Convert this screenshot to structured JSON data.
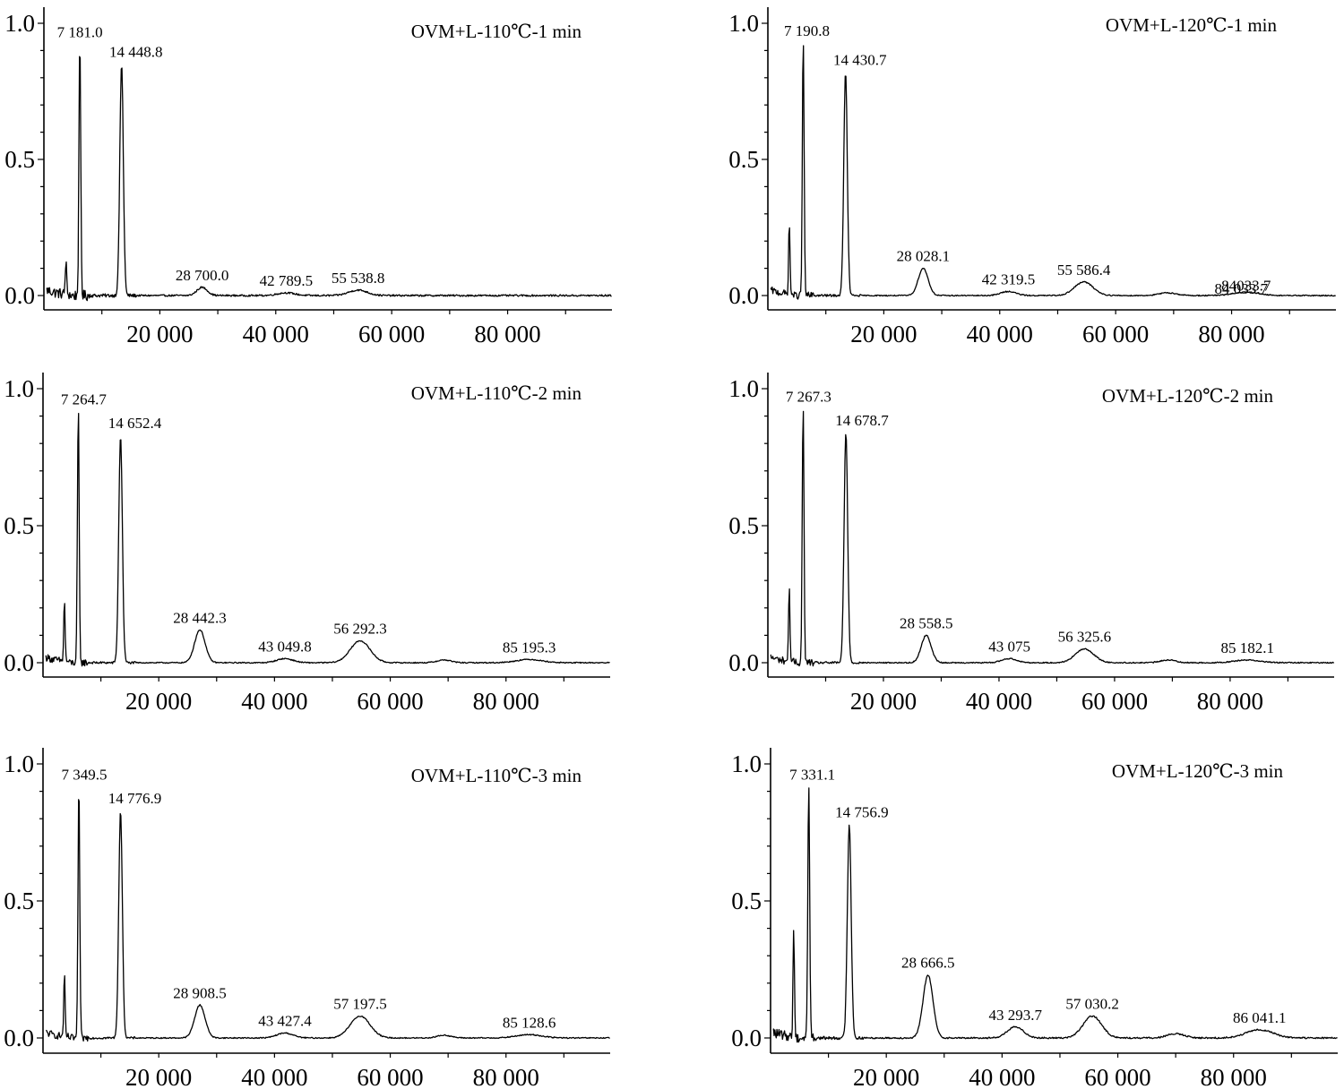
{
  "chart_data": [
    {
      "type": "line",
      "title": "OVM+L-110℃-1 min",
      "xlim": [
        0,
        98000
      ],
      "ylim": [
        0,
        1.05
      ],
      "xticks": [
        20000,
        40000,
        60000,
        80000
      ],
      "xtick_labels": [
        "20 000",
        "40 000",
        "60 000",
        "80 000"
      ],
      "yticks": [
        0.0,
        0.5,
        1.0
      ],
      "ytick_labels": [
        "0.0",
        "0.5",
        "1.0"
      ],
      "xlabel": "",
      "ylabel": "",
      "noise": 0.018,
      "peaks": [
        {
          "x": 3800,
          "height": 0.12,
          "sigma": 120,
          "label": ""
        },
        {
          "x": 6200,
          "height": 0.93,
          "sigma": 150,
          "label": "7 181.0"
        },
        {
          "x": 13400,
          "height": 0.85,
          "sigma": 300,
          "label": "14 448.8"
        },
        {
          "x": 27300,
          "height": 0.03,
          "sigma": 900,
          "label": "28 700.0"
        },
        {
          "x": 41800,
          "height": 0.01,
          "sigma": 1500,
          "label": "42 789.5"
        },
        {
          "x": 54200,
          "height": 0.02,
          "sigma": 1600,
          "label": "55 538.8"
        }
      ]
    },
    {
      "type": "line",
      "title": "OVM+L-110℃-2 min",
      "xlim": [
        0,
        98000
      ],
      "ylim": [
        0,
        1.05
      ],
      "xticks": [
        20000,
        40000,
        60000,
        80000
      ],
      "xtick_labels": [
        "20 000",
        "40 000",
        "60 000",
        "80 000"
      ],
      "yticks": [
        0.0,
        0.5,
        1.0
      ],
      "ytick_labels": [
        "0.0",
        "0.5",
        "1.0"
      ],
      "xlabel": "",
      "ylabel": "",
      "noise": 0.012,
      "peaks": [
        {
          "x": 3700,
          "height": 0.22,
          "sigma": 120,
          "label": ""
        },
        {
          "x": 6100,
          "height": 0.93,
          "sigma": 150,
          "label": "7 264.7"
        },
        {
          "x": 13400,
          "height": 0.83,
          "sigma": 310,
          "label": "14 652.4"
        },
        {
          "x": 27100,
          "height": 0.12,
          "sigma": 900,
          "label": "28 442.3"
        },
        {
          "x": 41800,
          "height": 0.015,
          "sigma": 1400,
          "label": "43 049.8"
        },
        {
          "x": 54800,
          "height": 0.08,
          "sigma": 1700,
          "label": "56 292.3"
        },
        {
          "x": 69300,
          "height": 0.01,
          "sigma": 1200,
          "label": ""
        },
        {
          "x": 84000,
          "height": 0.012,
          "sigma": 2200,
          "label": "85 195.3"
        }
      ]
    },
    {
      "type": "line",
      "title": "OVM+L-110℃-3 min",
      "xlim": [
        0,
        98000
      ],
      "ylim": [
        0,
        1.05
      ],
      "xticks": [
        20000,
        40000,
        60000,
        80000
      ],
      "xtick_labels": [
        "20 000",
        "40 000",
        "60 000",
        "80 000"
      ],
      "yticks": [
        0.0,
        0.5,
        1.0
      ],
      "ytick_labels": [
        "0.0",
        "0.5",
        "1.0"
      ],
      "xlabel": "",
      "ylabel": "",
      "noise": 0.012,
      "peaks": [
        {
          "x": 3700,
          "height": 0.22,
          "sigma": 120,
          "label": ""
        },
        {
          "x": 6200,
          "height": 0.93,
          "sigma": 150,
          "label": "7 349.5"
        },
        {
          "x": 13400,
          "height": 0.83,
          "sigma": 310,
          "label": "14 776.9"
        },
        {
          "x": 27100,
          "height": 0.12,
          "sigma": 900,
          "label": "28 908.5"
        },
        {
          "x": 41800,
          "height": 0.018,
          "sigma": 1400,
          "label": "43 427.4"
        },
        {
          "x": 54800,
          "height": 0.08,
          "sigma": 1700,
          "label": "57 197.5"
        },
        {
          "x": 69300,
          "height": 0.01,
          "sigma": 1200,
          "label": ""
        },
        {
          "x": 84000,
          "height": 0.012,
          "sigma": 2200,
          "label": "85 128.6"
        }
      ]
    },
    {
      "type": "line",
      "title": "OVM+L-120℃-1 min",
      "xlim": [
        0,
        98000
      ],
      "ylim": [
        0,
        1.05
      ],
      "xticks": [
        20000,
        40000,
        60000,
        80000
      ],
      "xtick_labels": [
        "20 000",
        "40 000",
        "60 000",
        "80 000"
      ],
      "yticks": [
        0.0,
        0.5,
        1.0
      ],
      "ytick_labels": [
        "0.0",
        "0.5",
        "1.0"
      ],
      "xlabel": "",
      "ylabel": "",
      "noise": 0.012,
      "peaks": [
        {
          "x": 3700,
          "height": 0.26,
          "sigma": 120,
          "label": ""
        },
        {
          "x": 6100,
          "height": 0.94,
          "sigma": 150,
          "label": "7 190.8"
        },
        {
          "x": 13400,
          "height": 0.82,
          "sigma": 300,
          "label": "14 430.7"
        },
        {
          "x": 26800,
          "height": 0.1,
          "sigma": 850,
          "label": "28 028.1"
        },
        {
          "x": 41500,
          "height": 0.015,
          "sigma": 1300,
          "label": "42 319.5"
        },
        {
          "x": 54500,
          "height": 0.05,
          "sigma": 1600,
          "label": "55 586.4"
        },
        {
          "x": 69000,
          "height": 0.01,
          "sigma": 1500,
          "label": ""
        },
        {
          "x": 82500,
          "height": 0.012,
          "sigma": 2200,
          "label": "84033.7"
        },
        {
          "x": 83500,
          "height": 0.0,
          "sigma": 2200,
          "label": "84 033.7"
        }
      ]
    },
    {
      "type": "line",
      "title": "OVM+L-120℃-2 min",
      "xlim": [
        0,
        98000
      ],
      "ylim": [
        0,
        1.05
      ],
      "xticks": [
        20000,
        40000,
        60000,
        80000
      ],
      "xtick_labels": [
        "20 000",
        "40 000",
        "60 000",
        "80 000"
      ],
      "yticks": [
        0.0,
        0.5,
        1.0
      ],
      "ytick_labels": [
        "0.0",
        "0.5",
        "1.0"
      ],
      "xlabel": "",
      "ylabel": "",
      "noise": 0.012,
      "peaks": [
        {
          "x": 3700,
          "height": 0.27,
          "sigma": 120,
          "label": ""
        },
        {
          "x": 6100,
          "height": 0.94,
          "sigma": 150,
          "label": "7 267.3"
        },
        {
          "x": 13500,
          "height": 0.84,
          "sigma": 310,
          "label": "14 678.7"
        },
        {
          "x": 27400,
          "height": 0.1,
          "sigma": 850,
          "label": "28 558.5"
        },
        {
          "x": 41800,
          "height": 0.015,
          "sigma": 1300,
          "label": "43 075"
        },
        {
          "x": 54800,
          "height": 0.05,
          "sigma": 1600,
          "label": "56 325.6"
        },
        {
          "x": 69300,
          "height": 0.01,
          "sigma": 1300,
          "label": ""
        },
        {
          "x": 83000,
          "height": 0.01,
          "sigma": 2200,
          "label": "85 182.1"
        }
      ]
    },
    {
      "type": "line",
      "title": "OVM+L-120℃-3 min",
      "xlim": [
        0,
        98000
      ],
      "ylim": [
        0,
        1.05
      ],
      "xticks": [
        20000,
        40000,
        60000,
        80000
      ],
      "xtick_labels": [
        "20 000",
        "40 000",
        "60 000",
        "80 000"
      ],
      "yticks": [
        0.0,
        0.5,
        1.0
      ],
      "ytick_labels": [
        "0.0",
        "0.5",
        "1.0"
      ],
      "xlabel": "",
      "ylabel": "",
      "noise": 0.016,
      "peaks": [
        {
          "x": 4000,
          "height": 0.4,
          "sigma": 120,
          "label": ""
        },
        {
          "x": 6600,
          "height": 0.93,
          "sigma": 160,
          "label": "7 331.1"
        },
        {
          "x": 13600,
          "height": 0.78,
          "sigma": 330,
          "label": "14 756.9"
        },
        {
          "x": 27200,
          "height": 0.23,
          "sigma": 850,
          "label": "28 666.5"
        },
        {
          "x": 42300,
          "height": 0.04,
          "sigma": 1400,
          "label": "43 293.7"
        },
        {
          "x": 55600,
          "height": 0.08,
          "sigma": 1600,
          "label": "57 030.2"
        },
        {
          "x": 70000,
          "height": 0.015,
          "sigma": 1500,
          "label": ""
        },
        {
          "x": 84500,
          "height": 0.03,
          "sigma": 2300,
          "label": "86 041.1"
        }
      ]
    }
  ]
}
